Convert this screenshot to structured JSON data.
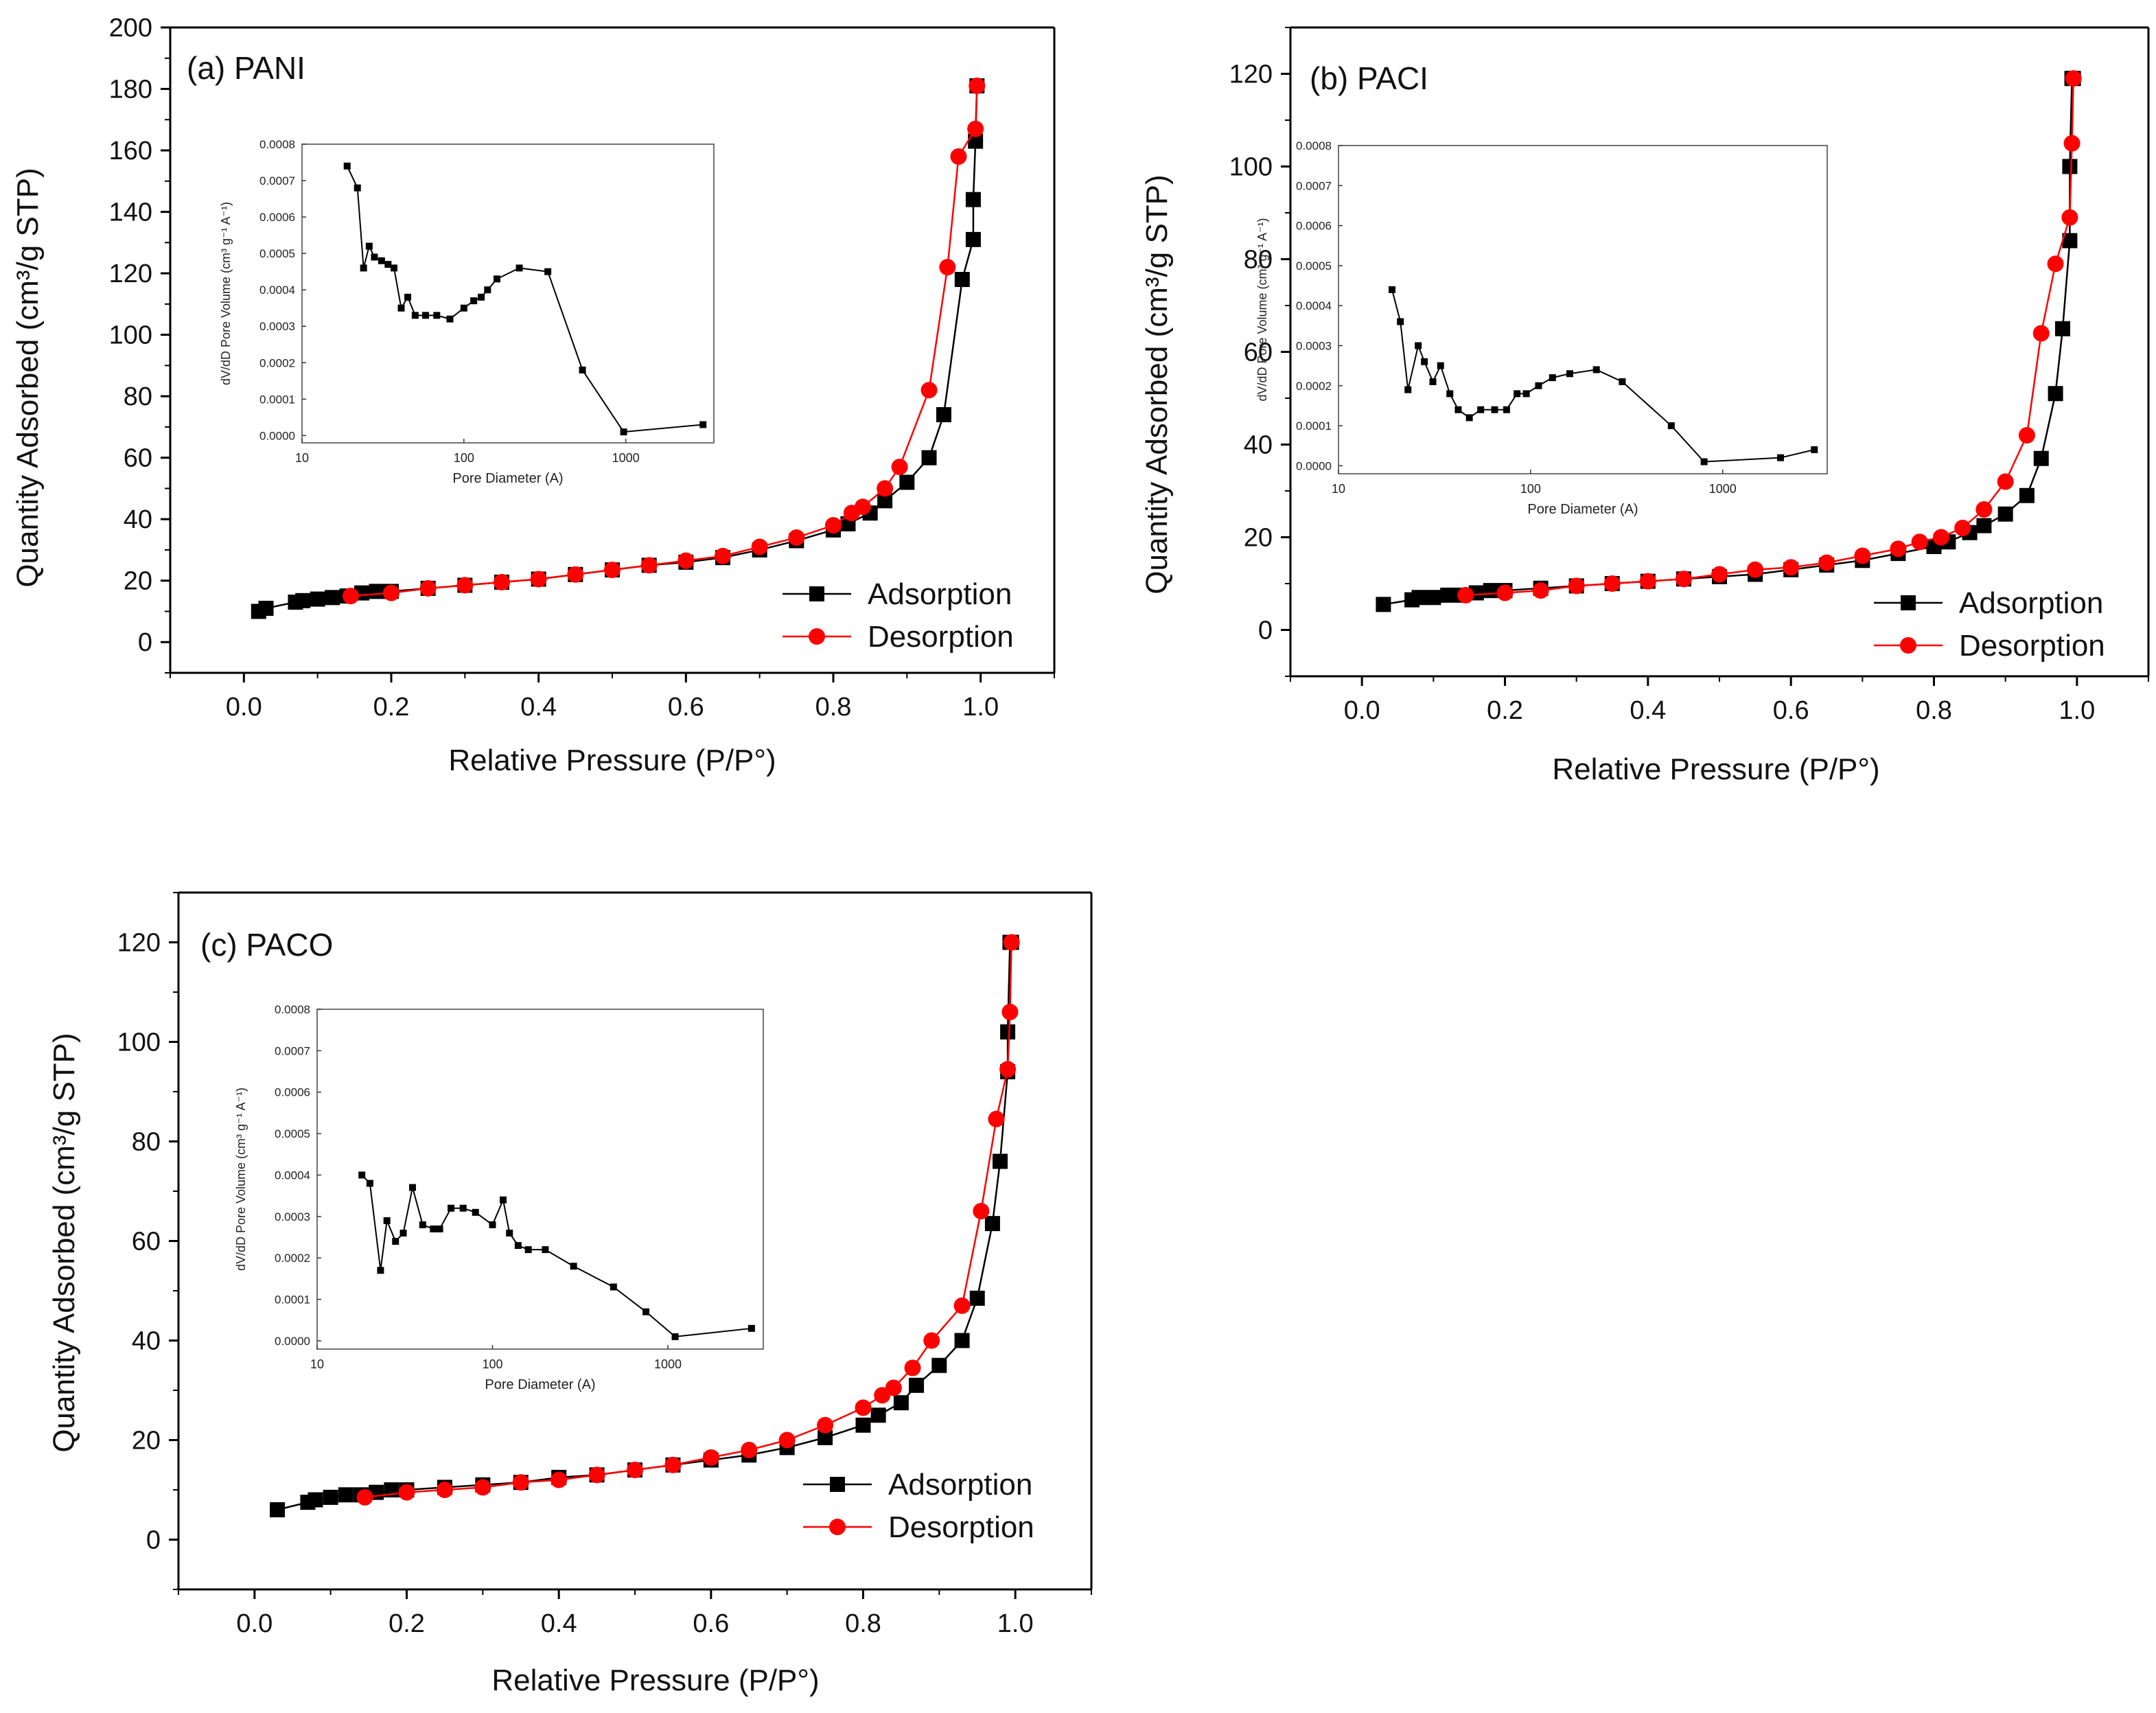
{
  "colors": {
    "adsorption": "#000000",
    "desorption": "#ff0000",
    "inset_line": "#000000",
    "axis": "#000000",
    "background": "#ffffff"
  },
  "chart_data": [
    {
      "type": "line",
      "title": "(a) PANI",
      "xlabel": "Relative Pressure (P/P°)",
      "ylabel": "Quantity Adsorbed (cm³/g STP)",
      "xlim": [
        -0.1,
        1.1
      ],
      "ylim": [
        -10,
        200
      ],
      "xticks": [
        0.0,
        0.2,
        0.4,
        0.6,
        0.8,
        1.0
      ],
      "xtick_labels": [
        "0.0",
        "0.2",
        "0.4",
        "0.6",
        "0.8",
        "1.0"
      ],
      "yticks": [
        0,
        20,
        40,
        60,
        80,
        100,
        120,
        140,
        160,
        180,
        200
      ],
      "ytick_labels": [
        "0",
        "20",
        "40",
        "60",
        "80",
        "100",
        "120",
        "140",
        "160",
        "180",
        "200"
      ],
      "legend_position": "bottom-right",
      "series": [
        {
          "name": "Adsorption",
          "marker": "square",
          "x": [
            0.02,
            0.03,
            0.07,
            0.08,
            0.1,
            0.12,
            0.14,
            0.16,
            0.18,
            0.2,
            0.25,
            0.3,
            0.35,
            0.4,
            0.45,
            0.5,
            0.55,
            0.6,
            0.65,
            0.7,
            0.75,
            0.8,
            0.82,
            0.85,
            0.87,
            0.9,
            0.93,
            0.95,
            0.975,
            0.99,
            0.99,
            0.993,
            0.995
          ],
          "y": [
            10,
            11,
            13,
            13.5,
            14,
            14.5,
            15,
            16,
            16.5,
            16.5,
            17.5,
            18.5,
            19.5,
            20.5,
            22,
            23.5,
            25,
            26,
            27.5,
            30,
            33,
            36.5,
            38.5,
            42,
            46,
            52,
            60,
            74,
            118,
            131,
            144,
            163,
            181
          ]
        },
        {
          "name": "Desorption",
          "marker": "circle",
          "x": [
            0.995,
            0.993,
            0.97,
            0.955,
            0.93,
            0.89,
            0.87,
            0.84,
            0.825,
            0.8,
            0.75,
            0.7,
            0.65,
            0.6,
            0.55,
            0.5,
            0.45,
            0.4,
            0.35,
            0.3,
            0.25,
            0.2,
            0.145
          ],
          "y": [
            181,
            167,
            158,
            122,
            82,
            57,
            50,
            44,
            42,
            38,
            34,
            31,
            28,
            26.5,
            25,
            23.5,
            22,
            20.5,
            19.5,
            18.5,
            17.5,
            16,
            15
          ]
        }
      ],
      "inset": {
        "type": "line",
        "xlabel": "Pore Diameter (A)",
        "ylabel": "dV/dD Pore Volume (cm³ g⁻¹ A⁻¹)",
        "xscale": "log",
        "xlim": [
          10,
          3500
        ],
        "ylim": [
          -2e-05,
          0.0008
        ],
        "xticks": [
          10,
          100,
          1000
        ],
        "xtick_labels": [
          "10",
          "100",
          "1000"
        ],
        "yticks": [
          0,
          0.0001,
          0.0002,
          0.0003,
          0.0004,
          0.0005,
          0.0006,
          0.0007,
          0.0008
        ],
        "ytick_labels": [
          "0.0000",
          "0.0001",
          "0.0002",
          "0.0003",
          "0.0004",
          "0.0005",
          "0.0006",
          "0.0007",
          "0.0008"
        ],
        "x": [
          19,
          22,
          24,
          26,
          28,
          31,
          34,
          37,
          41,
          45,
          50,
          58,
          68,
          82,
          100,
          115,
          128,
          140,
          160,
          220,
          330,
          540,
          970,
          3000
        ],
        "y": [
          0.00074,
          0.00068,
          0.00046,
          0.00052,
          0.00049,
          0.00048,
          0.00047,
          0.00046,
          0.00035,
          0.00038,
          0.00033,
          0.00033,
          0.00033,
          0.00032,
          0.00035,
          0.00037,
          0.00038,
          0.0004,
          0.00043,
          0.00046,
          0.00045,
          0.00018,
          1e-05,
          3e-05
        ]
      }
    },
    {
      "type": "line",
      "title": "(b) PACI",
      "xlabel": "Relative Pressure (P/P°)",
      "ylabel": "Quantity Adsorbed (cm³/g STP)",
      "xlim": [
        -0.1,
        1.1
      ],
      "ylim": [
        -10,
        130
      ],
      "xticks": [
        0.0,
        0.2,
        0.4,
        0.6,
        0.8,
        1.0
      ],
      "xtick_labels": [
        "0.0",
        "0.2",
        "0.4",
        "0.6",
        "0.8",
        "1.0"
      ],
      "yticks": [
        0,
        20,
        40,
        60,
        80,
        100,
        120
      ],
      "ytick_labels": [
        "0",
        "20",
        "40",
        "60",
        "80",
        "100",
        "120"
      ],
      "legend_position": "bottom-right",
      "series": [
        {
          "name": "Adsorption",
          "marker": "square",
          "x": [
            0.03,
            0.07,
            0.08,
            0.1,
            0.12,
            0.14,
            0.16,
            0.18,
            0.2,
            0.25,
            0.3,
            0.35,
            0.4,
            0.45,
            0.5,
            0.55,
            0.6,
            0.65,
            0.7,
            0.75,
            0.8,
            0.82,
            0.85,
            0.87,
            0.9,
            0.93,
            0.95,
            0.97,
            0.98,
            0.99,
            0.99,
            0.993,
            0.995
          ],
          "y": [
            5.5,
            6.5,
            7,
            7,
            7.5,
            7.5,
            8,
            8.5,
            8.5,
            9,
            9.5,
            10,
            10.5,
            11,
            11.5,
            12,
            13,
            14,
            15,
            16.5,
            18,
            19,
            21,
            22.5,
            25,
            29,
            37,
            51,
            65,
            84,
            100,
            119,
            119
          ]
        },
        {
          "name": "Desorption",
          "marker": "circle",
          "x": [
            0.995,
            0.993,
            0.99,
            0.97,
            0.95,
            0.93,
            0.9,
            0.87,
            0.84,
            0.81,
            0.78,
            0.75,
            0.7,
            0.65,
            0.6,
            0.55,
            0.5,
            0.45,
            0.4,
            0.35,
            0.3,
            0.25,
            0.2,
            0.145
          ],
          "y": [
            119,
            105,
            89,
            79,
            64,
            42,
            32,
            26,
            22,
            20,
            19,
            17.5,
            16,
            14.5,
            13.5,
            13,
            12,
            11,
            10.5,
            10,
            9.5,
            8.5,
            8,
            7.5
          ]
        }
      ],
      "inset": {
        "type": "line",
        "xlabel": "Pore Diameter (A)",
        "ylabel": "dV/dD Pore Volume (cm³ g⁻¹ A⁻¹)",
        "xscale": "log",
        "xlim": [
          10,
          3500
        ],
        "ylim": [
          -2e-05,
          0.0008
        ],
        "xticks": [
          10,
          100,
          1000
        ],
        "xtick_labels": [
          "10",
          "100",
          "1000"
        ],
        "yticks": [
          0,
          0.0001,
          0.0002,
          0.0003,
          0.0004,
          0.0005,
          0.0006,
          0.0007,
          0.0008
        ],
        "ytick_labels": [
          "0.0000",
          "0.0001",
          "0.0002",
          "0.0003",
          "0.0004",
          "0.0005",
          "0.0006",
          "0.0007",
          "0.0008"
        ],
        "x": [
          19,
          21,
          23,
          26,
          28,
          31,
          34,
          38,
          42,
          48,
          55,
          65,
          75,
          85,
          95,
          110,
          130,
          160,
          220,
          300,
          540,
          800,
          2000,
          3000
        ],
        "y": [
          0.00044,
          0.00036,
          0.00019,
          0.0003,
          0.00026,
          0.00021,
          0.00025,
          0.00018,
          0.00014,
          0.00012,
          0.00014,
          0.00014,
          0.00014,
          0.00018,
          0.00018,
          0.0002,
          0.00022,
          0.00023,
          0.00024,
          0.00021,
          0.0001,
          1e-05,
          2e-05,
          4e-05
        ]
      }
    },
    {
      "type": "line",
      "title": "(c) PACO",
      "xlabel": "Relative Pressure (P/P°)",
      "ylabel": "Quantity Adsorbed (cm³/g STP)",
      "xlim": [
        -0.1,
        1.1
      ],
      "ylim": [
        -10,
        130
      ],
      "xticks": [
        0.0,
        0.2,
        0.4,
        0.6,
        0.8,
        1.0
      ],
      "xtick_labels": [
        "0.0",
        "0.2",
        "0.4",
        "0.6",
        "0.8",
        "1.0"
      ],
      "yticks": [
        0,
        20,
        40,
        60,
        80,
        100,
        120
      ],
      "ytick_labels": [
        "0",
        "20",
        "40",
        "60",
        "80",
        "100",
        "120"
      ],
      "legend_position": "bottom-right",
      "series": [
        {
          "name": "Adsorption",
          "marker": "square",
          "x": [
            0.03,
            0.07,
            0.08,
            0.1,
            0.12,
            0.14,
            0.16,
            0.18,
            0.2,
            0.25,
            0.3,
            0.35,
            0.4,
            0.45,
            0.5,
            0.55,
            0.6,
            0.65,
            0.7,
            0.75,
            0.8,
            0.82,
            0.85,
            0.87,
            0.9,
            0.93,
            0.95,
            0.97,
            0.98,
            0.99,
            0.99,
            0.993,
            0.995
          ],
          "y": [
            6,
            7.5,
            8,
            8.5,
            9,
            9,
            9.5,
            10,
            10,
            10.5,
            11,
            11.5,
            12.5,
            13,
            14,
            15,
            16,
            17,
            18.5,
            20.5,
            23,
            25,
            27.5,
            31,
            35,
            40,
            48.5,
            63.5,
            76,
            94,
            102,
            120,
            120
          ]
        },
        {
          "name": "Desorption",
          "marker": "circle",
          "x": [
            0.995,
            0.993,
            0.99,
            0.975,
            0.955,
            0.93,
            0.89,
            0.865,
            0.84,
            0.825,
            0.8,
            0.75,
            0.7,
            0.65,
            0.6,
            0.55,
            0.5,
            0.45,
            0.4,
            0.35,
            0.3,
            0.25,
            0.2,
            0.145
          ],
          "y": [
            120,
            106,
            94.5,
            84.5,
            66,
            47,
            40,
            34.5,
            30.5,
            29,
            26.5,
            23,
            20,
            18,
            16.5,
            15,
            14,
            13,
            12,
            11.5,
            10.5,
            10,
            9.5,
            8.5
          ]
        }
      ],
      "inset": {
        "type": "line",
        "xlabel": "Pore Diameter (A)",
        "ylabel": "dV/dD Pore Volume (cm³ g⁻¹ A⁻¹)",
        "xscale": "log",
        "xlim": [
          10,
          3500
        ],
        "ylim": [
          -2e-05,
          0.0008
        ],
        "xticks": [
          10,
          100,
          1000
        ],
        "xtick_labels": [
          "10",
          "100",
          "1000"
        ],
        "yticks": [
          0,
          0.0001,
          0.0002,
          0.0003,
          0.0004,
          0.0005,
          0.0006,
          0.0007,
          0.0008
        ],
        "ytick_labels": [
          "0.0000",
          "0.0001",
          "0.0002",
          "0.0003",
          "0.0004",
          "0.0005",
          "0.0006",
          "0.0007",
          "0.0008"
        ],
        "x": [
          18,
          20,
          23,
          25,
          28,
          31,
          35,
          40,
          46,
          50,
          58,
          68,
          80,
          100,
          115,
          125,
          140,
          160,
          200,
          290,
          490,
          750,
          1100,
          3000
        ],
        "y": [
          0.0004,
          0.00038,
          0.00017,
          0.00029,
          0.00024,
          0.00026,
          0.00037,
          0.00028,
          0.00027,
          0.00027,
          0.00032,
          0.00032,
          0.00031,
          0.00028,
          0.00034,
          0.00026,
          0.00023,
          0.00022,
          0.00022,
          0.00018,
          0.00013,
          7e-05,
          1e-05,
          3e-05
        ]
      }
    }
  ]
}
